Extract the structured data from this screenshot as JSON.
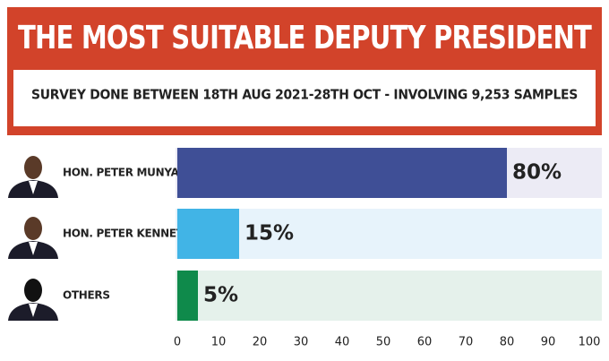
{
  "chart_data": {
    "type": "bar",
    "orientation": "horizontal",
    "title": "THE MOST SUITABLE DEPUTY PRESIDENT",
    "subtitle": "SURVEY DONE BETWEEN 18TH AUG 2021-28TH OCT - INVOLVING 9,253 SAMPLES",
    "categories": [
      "HON. PETER MUNYA",
      "HON. PETER KENNETH",
      "OTHERS"
    ],
    "values": [
      80,
      15,
      5
    ],
    "value_labels": [
      "80%",
      "15%",
      "5%"
    ],
    "colors": [
      "#3f4f96",
      "#41b4e6",
      "#0f8a4b"
    ],
    "row_colors": [
      "#ecebf5",
      "#e7f3fb",
      "#e5f1eb"
    ],
    "xlim": [
      0,
      100
    ],
    "xticks": [
      0,
      10,
      20,
      30,
      40,
      50,
      60,
      70,
      80,
      90,
      100
    ]
  }
}
